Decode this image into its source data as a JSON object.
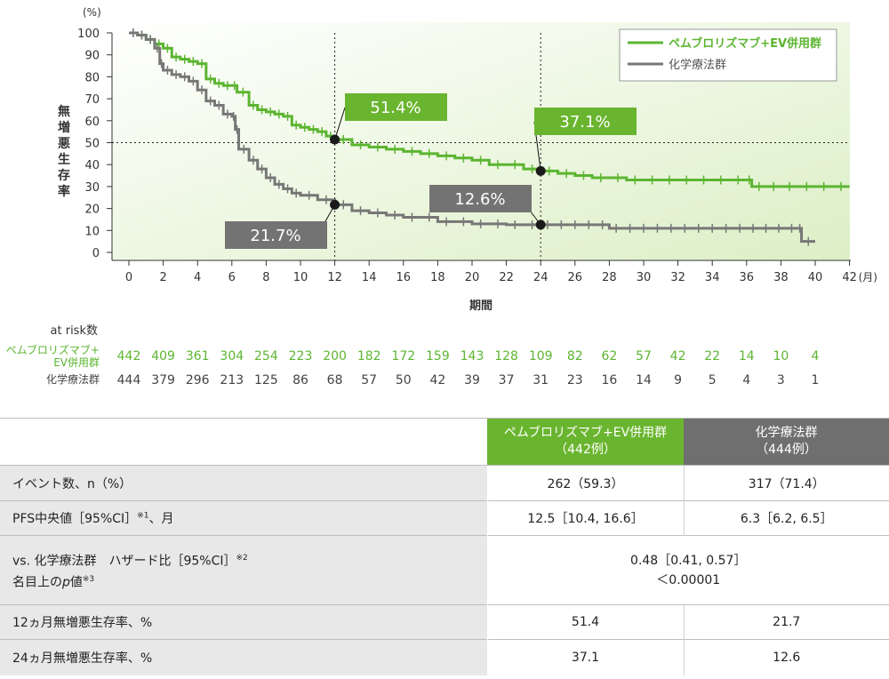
{
  "chart_data": {
    "type": "line",
    "ylabel": "無増悪生存率",
    "y_unit": "(%)",
    "xlabel": "期間",
    "x_unit": "(月)",
    "xlim": [
      0,
      42
    ],
    "ylim": [
      0,
      100
    ],
    "xticks": [
      0,
      2,
      4,
      6,
      8,
      10,
      12,
      14,
      16,
      18,
      20,
      22,
      24,
      26,
      28,
      30,
      32,
      34,
      36,
      38,
      40,
      42
    ],
    "yticks": [
      0,
      10,
      20,
      30,
      40,
      50,
      60,
      70,
      80,
      90,
      100
    ],
    "series": [
      {
        "name": "ペムブロリズマブ+EV併用群",
        "color": "#5cb531",
        "points": [
          [
            0,
            100
          ],
          [
            0.5,
            99
          ],
          [
            1,
            97
          ],
          [
            1.5,
            95
          ],
          [
            2,
            93
          ],
          [
            2.5,
            89
          ],
          [
            3,
            88
          ],
          [
            3.5,
            87
          ],
          [
            4,
            86
          ],
          [
            4.5,
            79
          ],
          [
            5,
            77
          ],
          [
            5.5,
            76
          ],
          [
            6,
            76
          ],
          [
            6.3,
            73
          ],
          [
            7,
            67
          ],
          [
            7.5,
            65
          ],
          [
            8,
            64
          ],
          [
            8.5,
            63
          ],
          [
            9,
            62
          ],
          [
            9.5,
            58
          ],
          [
            10,
            57
          ],
          [
            10.5,
            56
          ],
          [
            11,
            55
          ],
          [
            11.5,
            53
          ],
          [
            12,
            51.4
          ],
          [
            13,
            49
          ],
          [
            14,
            48
          ],
          [
            15,
            47
          ],
          [
            16,
            46
          ],
          [
            17,
            45
          ],
          [
            18,
            44
          ],
          [
            19,
            43
          ],
          [
            20,
            42
          ],
          [
            21,
            40
          ],
          [
            22,
            40
          ],
          [
            23,
            38
          ],
          [
            24,
            37.1
          ],
          [
            25,
            36
          ],
          [
            26,
            35
          ],
          [
            27,
            34
          ],
          [
            28,
            34
          ],
          [
            29,
            33
          ],
          [
            30,
            33
          ],
          [
            32,
            33
          ],
          [
            34,
            33
          ],
          [
            36,
            33
          ],
          [
            36.3,
            30
          ],
          [
            38,
            30
          ],
          [
            40,
            30
          ],
          [
            42,
            30
          ]
        ]
      },
      {
        "name": "化学療法群",
        "color": "#777777",
        "points": [
          [
            0,
            100
          ],
          [
            0.5,
            99
          ],
          [
            1,
            97
          ],
          [
            1.5,
            93
          ],
          [
            1.8,
            86
          ],
          [
            2,
            83
          ],
          [
            2.5,
            81
          ],
          [
            3,
            80
          ],
          [
            3.5,
            78
          ],
          [
            4,
            74
          ],
          [
            4.5,
            69
          ],
          [
            5,
            67
          ],
          [
            5.5,
            63
          ],
          [
            6,
            62
          ],
          [
            6.2,
            56
          ],
          [
            6.4,
            47
          ],
          [
            7,
            42
          ],
          [
            7.5,
            38
          ],
          [
            8,
            34
          ],
          [
            8.5,
            31
          ],
          [
            9,
            29
          ],
          [
            9.5,
            27
          ],
          [
            10,
            26
          ],
          [
            11,
            24
          ],
          [
            12,
            21.7
          ],
          [
            13,
            19
          ],
          [
            14,
            18
          ],
          [
            15,
            17
          ],
          [
            16,
            16
          ],
          [
            18,
            14
          ],
          [
            20,
            13
          ],
          [
            22,
            12.6
          ],
          [
            24,
            12.6
          ],
          [
            28,
            11
          ],
          [
            32,
            11
          ],
          [
            36,
            11
          ],
          [
            39,
            11
          ],
          [
            39.2,
            5
          ],
          [
            40,
            5
          ]
        ]
      }
    ],
    "reference_x": [
      12,
      24
    ],
    "reference_y": 50,
    "annotations": [
      {
        "x": 12,
        "y": 51.4,
        "text": "51.4%",
        "series": 0
      },
      {
        "x": 24,
        "y": 37.1,
        "text": "37.1%",
        "series": 0
      },
      {
        "x": 24,
        "y": 12.6,
        "text": "12.6%",
        "series": 1
      },
      {
        "x": 12,
        "y": 21.7,
        "text": "21.7%",
        "series": 1
      }
    ],
    "legend_position": "top-right"
  },
  "risk": {
    "title": "at risk数",
    "groups": [
      {
        "label1": "ペムブロリズマブ+",
        "label2": "EV併用群",
        "color": "#5cb531",
        "values": [
          "442",
          "409",
          "361",
          "304",
          "254",
          "223",
          "200",
          "182",
          "172",
          "159",
          "143",
          "128",
          "109",
          "82",
          "62",
          "57",
          "42",
          "22",
          "14",
          "10",
          "4"
        ]
      },
      {
        "label1": "化学療法群",
        "label2": "",
        "color": "#444444",
        "values": [
          "444",
          "379",
          "296",
          "213",
          "125",
          "86",
          "68",
          "57",
          "50",
          "42",
          "39",
          "37",
          "31",
          "23",
          "16",
          "14",
          "9",
          "5",
          "4",
          "3",
          "1"
        ]
      }
    ]
  },
  "table": {
    "head_green1": "ペムブロリズマブ+EV併用群",
    "head_green2": "（442例）",
    "head_gray1": "化学療法群",
    "head_gray2": "（444例）",
    "r1_label": "イベント数、n（%）",
    "r1_a": "262（59.3）",
    "r1_b": "317（71.4）",
    "r2_label": "PFS中央値［95%CI］",
    "r2_sup": "※1",
    "r2_suffix": "、月",
    "r2_a": "12.5［10.4, 16.6］",
    "r2_b": "6.3［6.2, 6.5］",
    "r3_label1": "vs. 化学療法群　ハザード比［95%CI］",
    "r3_sup1": "※2",
    "r3_label2a": "名目上の",
    "r3_label2p": "p",
    "r3_label2b": "値",
    "r3_sup2": "※3",
    "r3_v1": "0.48［0.41, 0.57］",
    "r3_v2": "＜0.00001",
    "r4_label": "12ヵ月無増悪生存率、%",
    "r4_a": "51.4",
    "r4_b": "21.7",
    "r5_label": "24ヵ月無増悪生存率、%",
    "r5_a": "37.1",
    "r5_b": "12.6"
  }
}
